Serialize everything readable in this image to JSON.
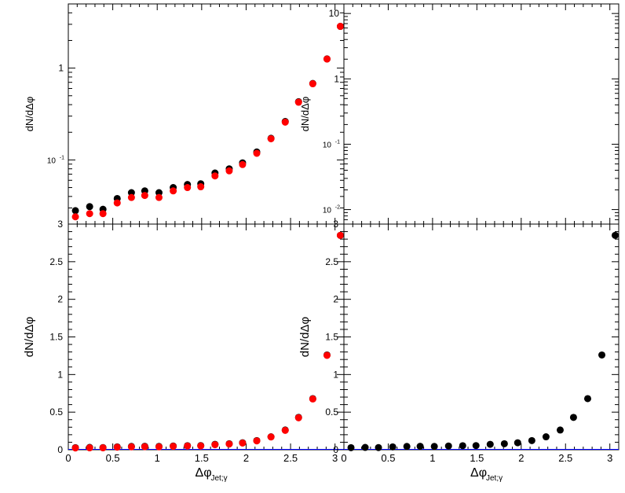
{
  "chart_data": [
    {
      "type": "scatter",
      "panel": "top-left",
      "yscale": "log",
      "ylabel": "dN/dΔφ",
      "ylim": [
        0.02,
        5
      ],
      "yticks": [
        {
          "v": 0.1,
          "label": "10",
          "sup": "-1"
        },
        {
          "v": 1,
          "label": "1",
          "sup": ""
        }
      ],
      "xlim": [
        0,
        3.1
      ],
      "x": [
        0.08,
        0.24,
        0.39,
        0.55,
        0.71,
        0.86,
        1.02,
        1.18,
        1.34,
        1.49,
        1.65,
        1.81,
        1.96,
        2.12,
        2.28,
        2.44,
        2.59,
        2.75,
        2.91,
        3.06
      ],
      "series": [
        {
          "name": "black",
          "color": "#000000",
          "values": [
            0.028,
            0.031,
            0.029,
            0.038,
            0.044,
            0.046,
            0.044,
            0.05,
            0.054,
            0.055,
            0.072,
            0.08,
            0.093,
            0.122,
            0.172,
            0.262,
            0.43,
            0.68,
            1.26,
            2.85
          ]
        },
        {
          "name": "red",
          "color": "#ff0000",
          "values": [
            0.024,
            0.026,
            0.026,
            0.034,
            0.039,
            0.041,
            0.039,
            0.046,
            0.05,
            0.051,
            0.067,
            0.076,
            0.089,
            0.118,
            0.17,
            0.258,
            0.425,
            0.675,
            1.255,
            2.85
          ]
        }
      ]
    },
    {
      "type": "scatter",
      "panel": "top-right",
      "yscale": "log",
      "ylabel": "dN/dΔφ",
      "ylim": [
        0.006,
        14
      ],
      "yticks": [
        {
          "v": 0.01,
          "label": "10",
          "sup": "-2"
        },
        {
          "v": 0.1,
          "label": "10",
          "sup": "-1"
        },
        {
          "v": 1,
          "label": "1",
          "sup": ""
        },
        {
          "v": 10,
          "label": "10",
          "sup": ""
        }
      ],
      "xlim": [
        0,
        3.1
      ],
      "x": [],
      "series": []
    },
    {
      "type": "scatter",
      "panel": "bottom-left",
      "ylabel": "dN/dΔφ",
      "xlabel": "Δφ",
      "xlabel_sub": "Jet;γ",
      "ylim": [
        0,
        3
      ],
      "yticks": [
        "0",
        "0.5",
        "1",
        "1.5",
        "2",
        "2.5",
        "3"
      ],
      "xlim": [
        0,
        3.1
      ],
      "xticks": [
        "0",
        "0.5",
        "1",
        "1.5",
        "2",
        "2.5",
        "3"
      ],
      "x": [
        0.08,
        0.24,
        0.39,
        0.55,
        0.71,
        0.86,
        1.02,
        1.18,
        1.34,
        1.49,
        1.65,
        1.81,
        1.96,
        2.12,
        2.28,
        2.44,
        2.59,
        2.75,
        2.91,
        3.06
      ],
      "series": [
        {
          "name": "black",
          "color": "#000000",
          "values": [
            0.028,
            0.031,
            0.029,
            0.038,
            0.044,
            0.046,
            0.044,
            0.05,
            0.054,
            0.055,
            0.072,
            0.08,
            0.093,
            0.122,
            0.172,
            0.262,
            0.43,
            0.68,
            1.26,
            2.85
          ]
        },
        {
          "name": "red",
          "color": "#ff0000",
          "values": [
            0.024,
            0.026,
            0.026,
            0.034,
            0.039,
            0.041,
            0.039,
            0.046,
            0.05,
            0.051,
            0.067,
            0.076,
            0.089,
            0.118,
            0.17,
            0.258,
            0.425,
            0.675,
            1.255,
            2.85
          ]
        }
      ]
    },
    {
      "type": "scatter",
      "panel": "bottom-right",
      "ylabel": "dN/dΔφ",
      "xlabel": "Δφ",
      "xlabel_sub": "Jet;γ",
      "ylim": [
        0,
        3
      ],
      "yticks": [
        "0",
        "0.5",
        "1",
        "1.5",
        "2",
        "2.5",
        "3"
      ],
      "xlim": [
        0,
        3.1
      ],
      "xticks": [
        "0",
        "0.5",
        "1",
        "1.5",
        "2",
        "2.5",
        "3"
      ],
      "x": [
        0.08,
        0.24,
        0.39,
        0.55,
        0.71,
        0.86,
        1.02,
        1.18,
        1.34,
        1.49,
        1.65,
        1.81,
        1.96,
        2.12,
        2.28,
        2.44,
        2.59,
        2.75,
        2.91,
        3.06
      ],
      "series": [
        {
          "name": "black",
          "color": "#000000",
          "values": [
            0.028,
            0.031,
            0.029,
            0.038,
            0.044,
            0.046,
            0.044,
            0.05,
            0.054,
            0.055,
            0.072,
            0.08,
            0.093,
            0.122,
            0.172,
            0.262,
            0.43,
            0.68,
            1.26,
            2.85
          ]
        }
      ]
    }
  ]
}
